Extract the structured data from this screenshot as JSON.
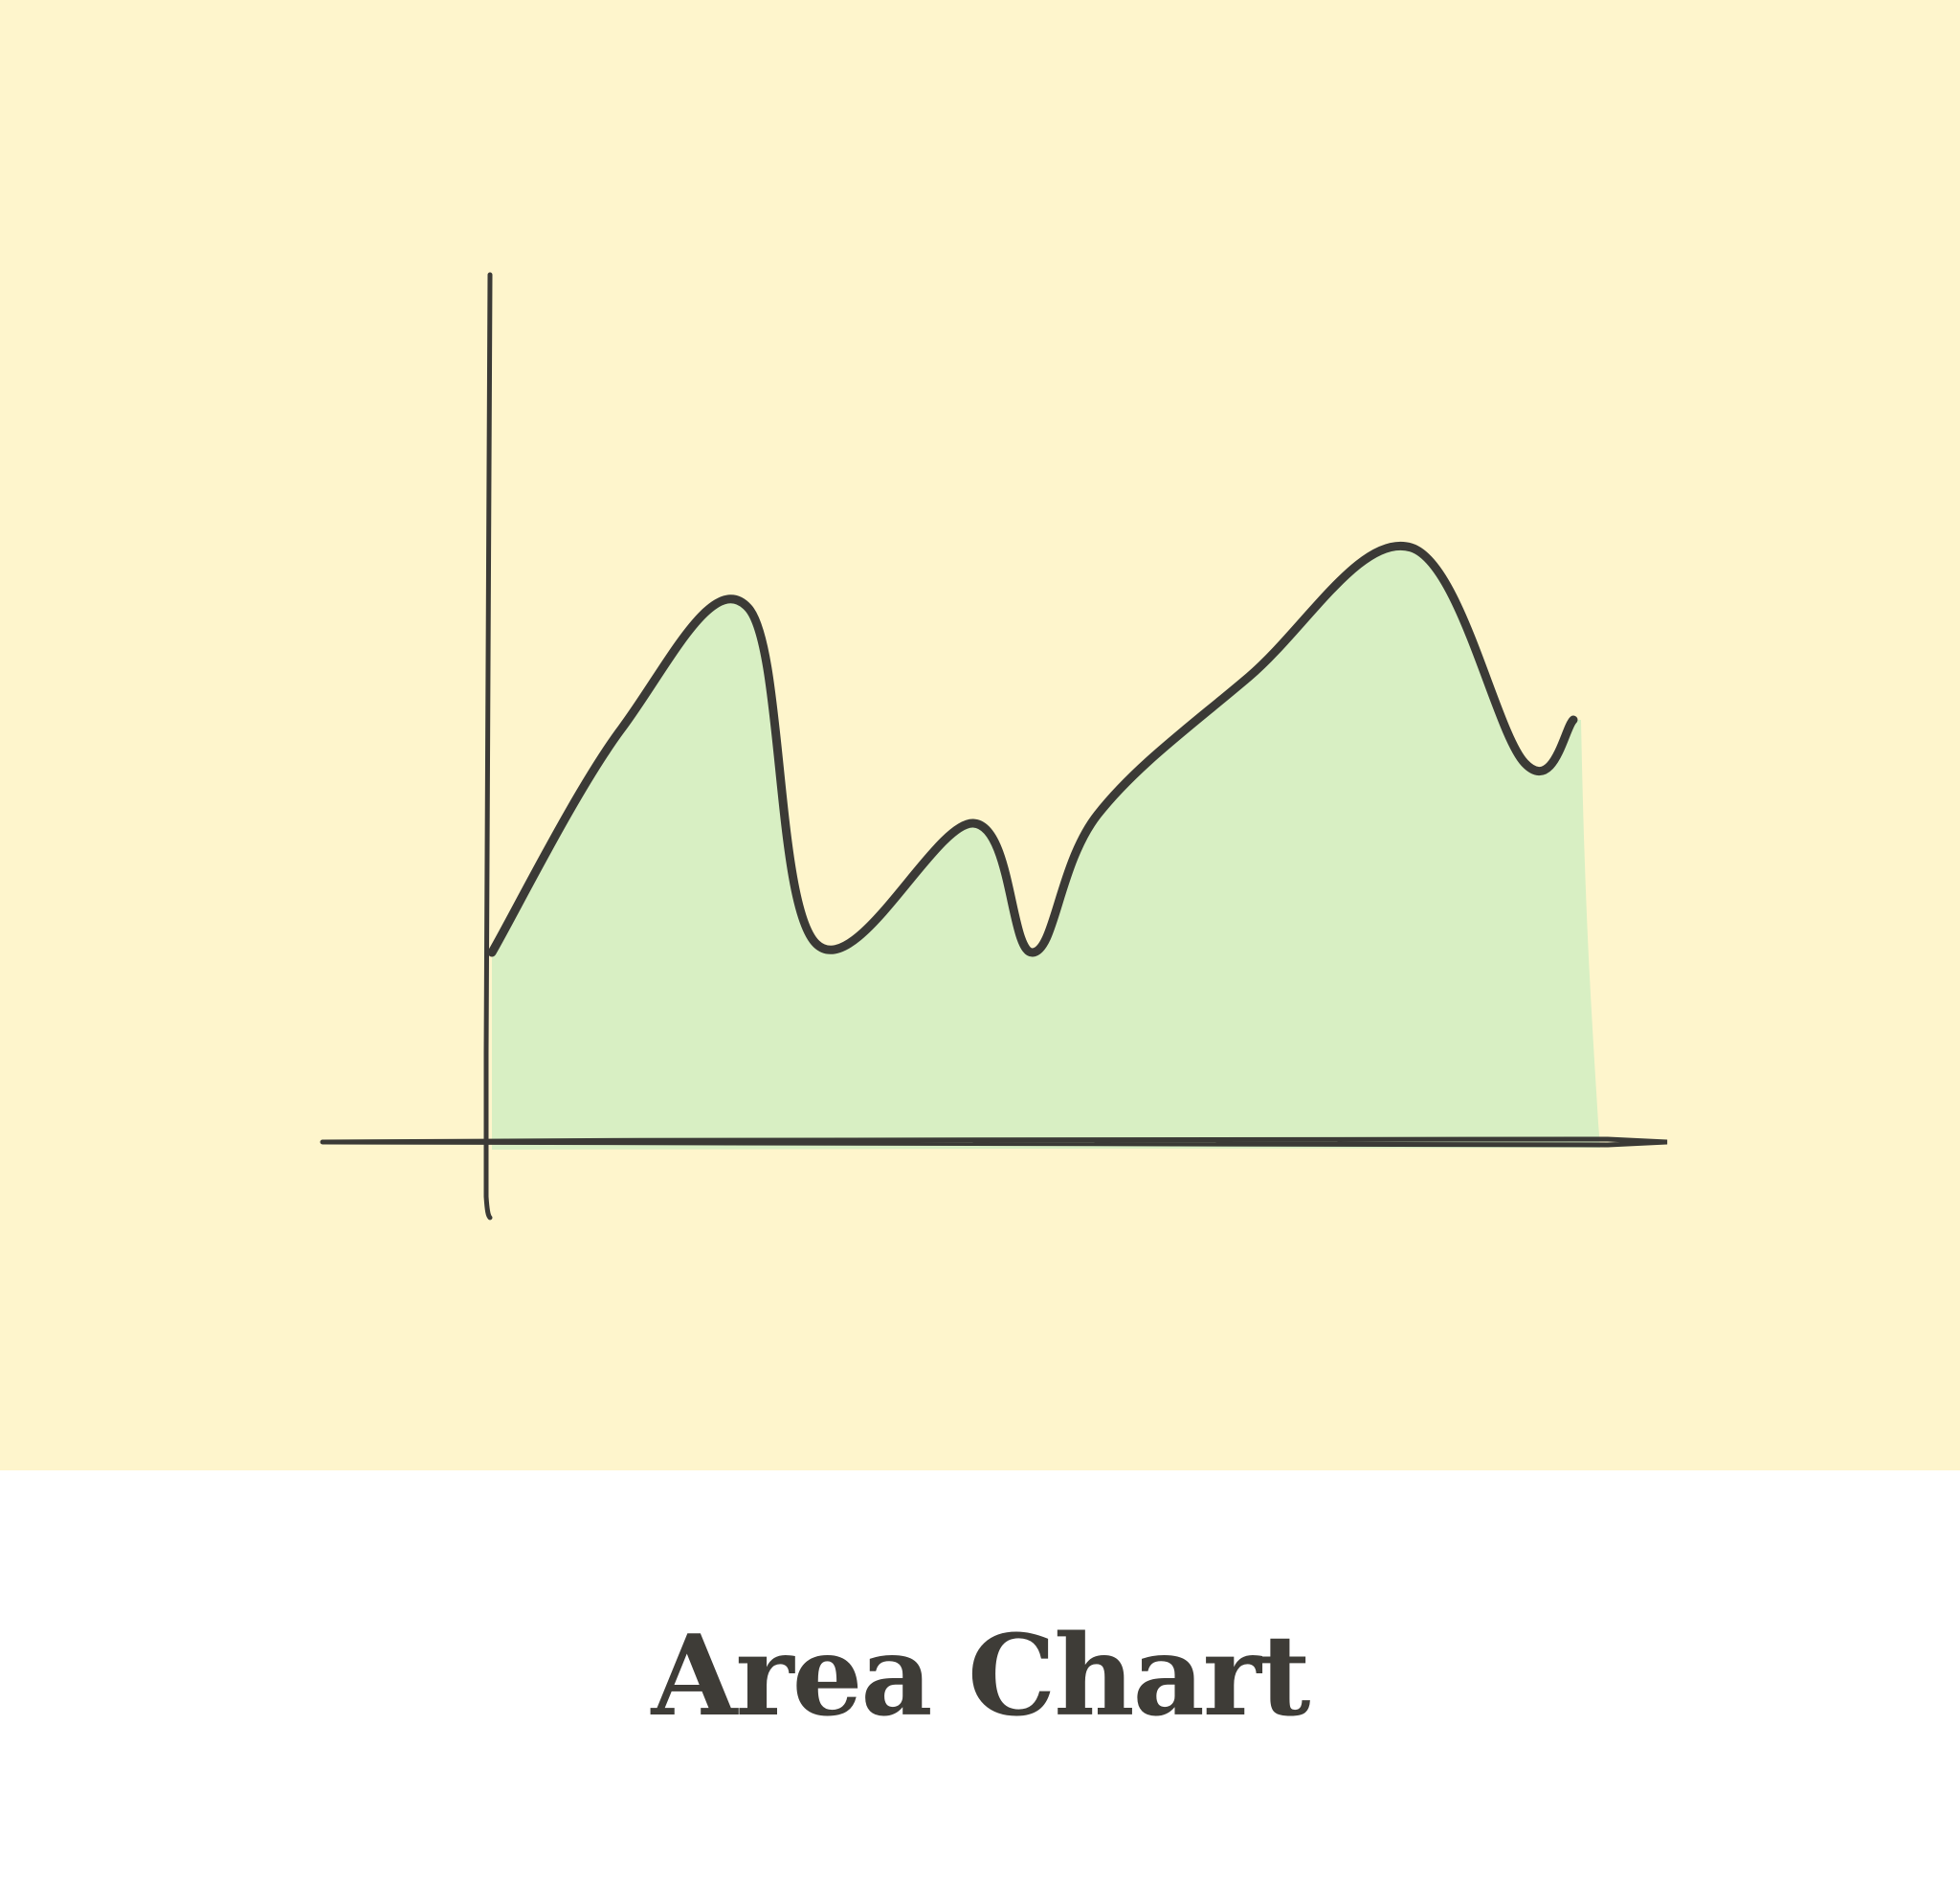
{
  "caption": {
    "title": "Area Chart"
  },
  "colors": {
    "background": "#fef5cc",
    "area_fill": "#d8efc3",
    "line": "#3b3a36",
    "caption_text": "#3e3c37"
  },
  "chart_data": {
    "type": "area",
    "title": "",
    "xlabel": "",
    "ylabel": "",
    "grid": false,
    "legend": "none",
    "xlim": [
      0,
      1
    ],
    "ylim": [
      0,
      1
    ],
    "x": [
      0.0,
      0.12,
      0.237,
      0.3,
      0.445,
      0.5,
      0.56,
      0.7,
      0.85,
      0.955,
      1.0
    ],
    "series": [
      {
        "values": [
          0.22,
          0.48,
          0.62,
          0.23,
          0.37,
          0.22,
          0.38,
          0.54,
          0.69,
          0.44,
          0.49
        ]
      }
    ]
  }
}
